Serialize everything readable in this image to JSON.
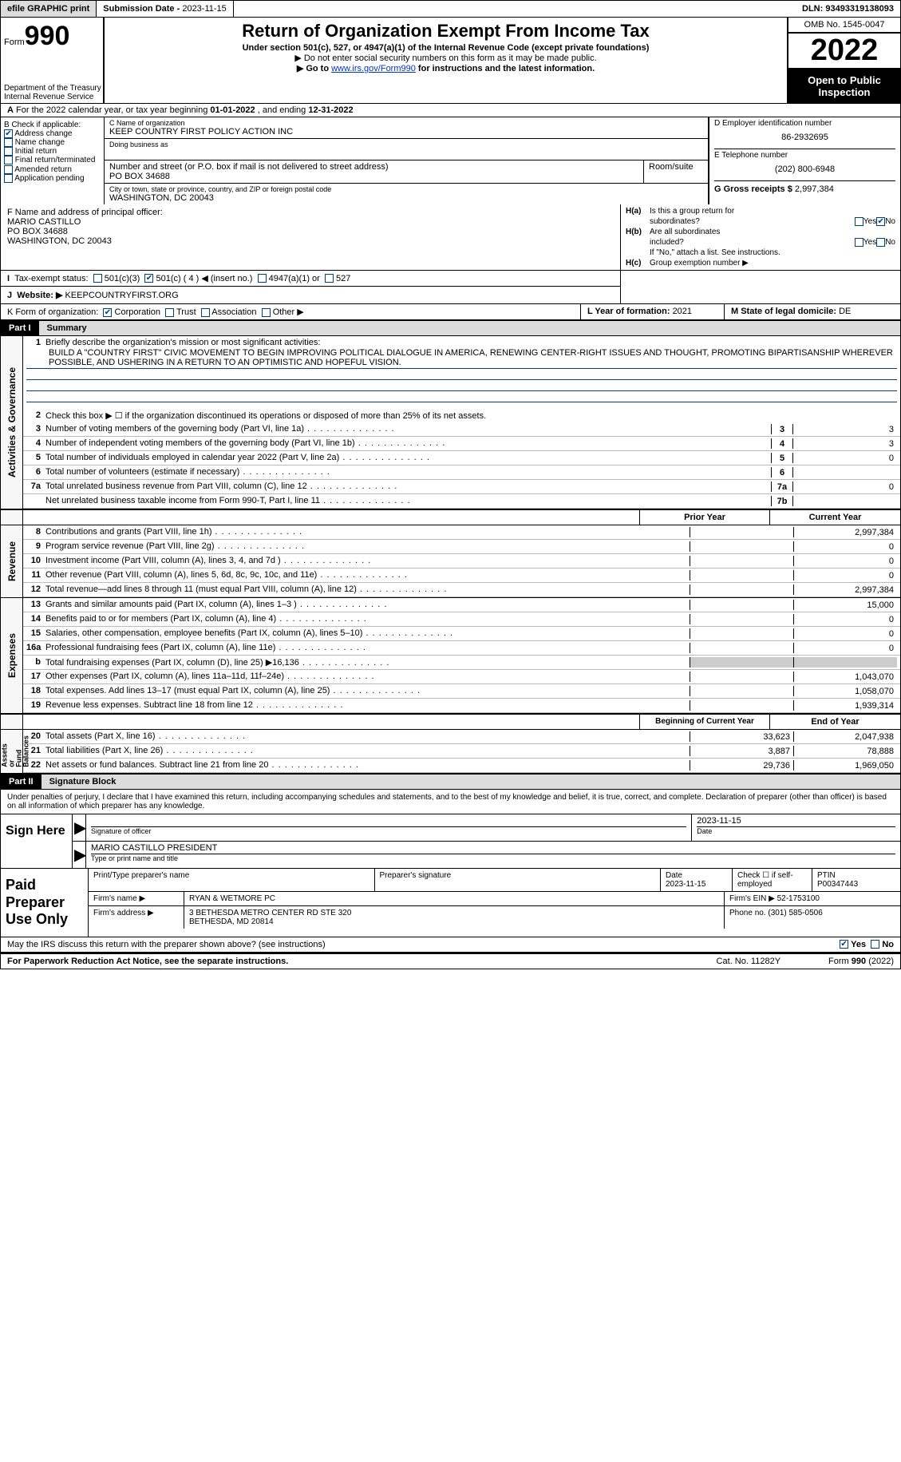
{
  "topbar": {
    "efile": "efile GRAPHIC print",
    "sub_lbl": "Submission Date - ",
    "sub_date": "2023-11-15",
    "dln_lbl": "DLN: ",
    "dln": "93493319138093"
  },
  "hdr": {
    "form_word": "Form",
    "form_num": "990",
    "title": "Return of Organization Exempt From Income Tax",
    "sub": "Under section 501(c), 527, or 4947(a)(1) of the Internal Revenue Code (except private foundations)",
    "note1": "▶ Do not enter social security numbers on this form as it may be made public.",
    "note2_pre": "▶ Go to ",
    "note2_link": "www.irs.gov/Form990",
    "note2_post": " for instructions and the latest information.",
    "dept": "Department of the Treasury\nInternal Revenue Service",
    "omb": "OMB No. 1545-0047",
    "year": "2022",
    "otp": "Open to Public Inspection"
  },
  "A": {
    "pre": "For the 2022 calendar year, or tax year beginning ",
    "begin": "01-01-2022",
    "mid": " , and ending ",
    "end": "12-31-2022"
  },
  "B": {
    "title": "B Check if applicable:",
    "items": [
      "Address change",
      "Name change",
      "Initial return",
      "Final return/terminated",
      "Amended return",
      "Application pending"
    ],
    "checked": 0
  },
  "C": {
    "name_lbl": "C Name of organization",
    "name": "KEEP COUNTRY FIRST POLICY ACTION INC",
    "dba_lbl": "Doing business as",
    "addr_lbl": "Number and street (or P.O. box if mail is not delivered to street address)",
    "room_lbl": "Room/suite",
    "addr": "PO BOX 34688",
    "city_lbl": "City or town, state or province, country, and ZIP or foreign postal code",
    "city": "WASHINGTON, DC  20043"
  },
  "D": {
    "lbl": "D Employer identification number",
    "val": "86-2932695"
  },
  "E": {
    "lbl": "E Telephone number",
    "val": "(202) 800-6948"
  },
  "G": {
    "lbl": "G Gross receipts $ ",
    "val": "2,997,384"
  },
  "F": {
    "lbl": "F Name and address of principal officer:",
    "name": "MARIO CASTILLO",
    "addr": "PO BOX 34688",
    "city": "WASHINGTON, DC  20043"
  },
  "H": {
    "a1": "Is this a group return for",
    "a2": "subordinates?",
    "b1": "Are all subordinates",
    "b2": "included?",
    "note": "If \"No,\" attach a list. See instructions.",
    "c": "Group exemption number ▶",
    "yes": "Yes",
    "no": "No"
  },
  "I": {
    "lbl": "Tax-exempt status:",
    "opts": [
      "501(c)(3)",
      "501(c) ( 4 ) ◀ (insert no.)",
      "4947(a)(1) or",
      "527"
    ]
  },
  "J": {
    "lbl": "Website: ▶",
    "val": "KEEPCOUNTRYFIRST.ORG"
  },
  "K": {
    "lbl": "K Form of organization:",
    "opts": [
      "Corporation",
      "Trust",
      "Association",
      "Other ▶"
    ]
  },
  "L": {
    "lbl": "L Year of formation: ",
    "val": "2021"
  },
  "M": {
    "lbl": "M State of legal domicile: ",
    "val": "DE"
  },
  "part1": {
    "num": "Part I",
    "title": "Summary"
  },
  "p1": {
    "q1_lbl": "Briefly describe the organization's mission or most significant activities:",
    "q1_val": "BUILD A \"COUNTRY FIRST\" CIVIC MOVEMENT TO BEGIN IMPROVING POLITICAL DIALOGUE IN AMERICA, RENEWING CENTER-RIGHT ISSUES AND THOUGHT, PROMOTING BIPARTISANSHIP WHEREVER POSSIBLE, AND USHERING IN A RETURN TO AN OPTIMISTIC AND HOPEFUL VISION.",
    "q2": "Check this box ▶ ☐ if the organization discontinued its operations or disposed of more than 25% of its net assets.",
    "lines": [
      {
        "n": "3",
        "t": "Number of voting members of the governing body (Part VI, line 1a)",
        "b": "3",
        "v": "3"
      },
      {
        "n": "4",
        "t": "Number of independent voting members of the governing body (Part VI, line 1b)",
        "b": "4",
        "v": "3"
      },
      {
        "n": "5",
        "t": "Total number of individuals employed in calendar year 2022 (Part V, line 2a)",
        "b": "5",
        "v": "0"
      },
      {
        "n": "6",
        "t": "Total number of volunteers (estimate if necessary)",
        "b": "6",
        "v": ""
      },
      {
        "n": "7a",
        "t": "Total unrelated business revenue from Part VIII, column (C), line 12",
        "b": "7a",
        "v": "0"
      },
      {
        "n": "",
        "t": "Net unrelated business taxable income from Form 990-T, Part I, line 11",
        "b": "7b",
        "v": ""
      }
    ],
    "hdr_prior": "Prior Year",
    "hdr_curr": "Current Year",
    "rev": [
      {
        "n": "8",
        "t": "Contributions and grants (Part VIII, line 1h)",
        "p": "",
        "c": "2,997,384"
      },
      {
        "n": "9",
        "t": "Program service revenue (Part VIII, line 2g)",
        "p": "",
        "c": "0"
      },
      {
        "n": "10",
        "t": "Investment income (Part VIII, column (A), lines 3, 4, and 7d )",
        "p": "",
        "c": "0"
      },
      {
        "n": "11",
        "t": "Other revenue (Part VIII, column (A), lines 5, 6d, 8c, 9c, 10c, and 11e)",
        "p": "",
        "c": "0"
      },
      {
        "n": "12",
        "t": "Total revenue—add lines 8 through 11 (must equal Part VIII, column (A), line 12)",
        "p": "",
        "c": "2,997,384"
      }
    ],
    "exp": [
      {
        "n": "13",
        "t": "Grants and similar amounts paid (Part IX, column (A), lines 1–3 )",
        "p": "",
        "c": "15,000"
      },
      {
        "n": "14",
        "t": "Benefits paid to or for members (Part IX, column (A), line 4)",
        "p": "",
        "c": "0"
      },
      {
        "n": "15",
        "t": "Salaries, other compensation, employee benefits (Part IX, column (A), lines 5–10)",
        "p": "",
        "c": "0"
      },
      {
        "n": "16a",
        "t": "Professional fundraising fees (Part IX, column (A), line 11e)",
        "p": "",
        "c": "0"
      },
      {
        "n": "b",
        "t": "Total fundraising expenses (Part IX, column (D), line 25) ▶16,136",
        "p": "grey",
        "c": "grey"
      },
      {
        "n": "17",
        "t": "Other expenses (Part IX, column (A), lines 11a–11d, 11f–24e)",
        "p": "",
        "c": "1,043,070"
      },
      {
        "n": "18",
        "t": "Total expenses. Add lines 13–17 (must equal Part IX, column (A), line 25)",
        "p": "",
        "c": "1,058,070"
      },
      {
        "n": "19",
        "t": "Revenue less expenses. Subtract line 18 from line 12",
        "p": "",
        "c": "1,939,314"
      }
    ],
    "hdr_beg": "Beginning of Current Year",
    "hdr_end": "End of Year",
    "net": [
      {
        "n": "20",
        "t": "Total assets (Part X, line 16)",
        "p": "33,623",
        "c": "2,047,938"
      },
      {
        "n": "21",
        "t": "Total liabilities (Part X, line 26)",
        "p": "3,887",
        "c": "78,888"
      },
      {
        "n": "22",
        "t": "Net assets or fund balances. Subtract line 21 from line 20",
        "p": "29,736",
        "c": "1,969,050"
      }
    ]
  },
  "vtabs": {
    "ag": "Activities & Governance",
    "rev": "Revenue",
    "exp": "Expenses",
    "net": "Net Assets or\nFund Balances"
  },
  "part2": {
    "num": "Part II",
    "title": "Signature Block"
  },
  "penalty": "Under penalties of perjury, I declare that I have examined this return, including accompanying schedules and statements, and to the best of my knowledge and belief, it is true, correct, and complete. Declaration of preparer (other than officer) is based on all information of which preparer has any knowledge.",
  "sign": {
    "here": "Sign Here",
    "sig_lbl": "Signature of officer",
    "date_lbl": "Date",
    "date": "2023-11-15",
    "name": "MARIO CASTILLO  PRESIDENT",
    "name_lbl": "Type or print name and title"
  },
  "prep": {
    "title": "Paid Preparer Use Only",
    "r1": {
      "a": "Print/Type preparer's name",
      "b": "Preparer's signature",
      "c_lbl": "Date",
      "c": "2023-11-15",
      "d": "Check ☐ if self-employed",
      "e_lbl": "PTIN",
      "e": "P00347443"
    },
    "r2": {
      "a": "Firm's name    ▶",
      "b": "RYAN & WETMORE PC",
      "c": "Firm's EIN ▶ 52-1753100"
    },
    "r3": {
      "a": "Firm's address ▶",
      "b": "3 BETHESDA METRO CENTER RD STE 320",
      "b2": "BETHESDA, MD  20814",
      "c": "Phone no. (301) 585-0506"
    }
  },
  "discuss": {
    "txt": "May the IRS discuss this return with the preparer shown above? (see instructions)",
    "yes": "Yes",
    "no": "No"
  },
  "foot": {
    "l": "For Paperwork Reduction Act Notice, see the separate instructions.",
    "c": "Cat. No. 11282Y",
    "r": "Form 990 (2022)"
  }
}
